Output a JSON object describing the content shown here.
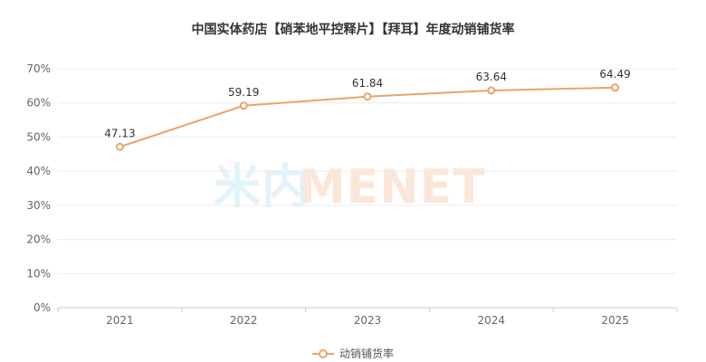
{
  "chart_data": {
    "type": "line",
    "title": "中国实体药店【硝苯地平控释片】【拜耳】年度动销铺货率",
    "categories": [
      "2021",
      "2022",
      "2023",
      "2024",
      "2025"
    ],
    "series": [
      {
        "name": "动销铺货率",
        "values": [
          47.13,
          59.19,
          61.84,
          63.64,
          64.49
        ],
        "color": "#e8a46a"
      }
    ],
    "y_ticks": [
      "0%",
      "10%",
      "20%",
      "30%",
      "40%",
      "50%",
      "60%",
      "70%"
    ],
    "ylim": [
      0,
      70
    ],
    "grid": true,
    "legend_position": "bottom-center",
    "data_labels": [
      "47.13",
      "59.19",
      "61.84",
      "63.64",
      "64.49"
    ]
  },
  "watermark": {
    "part1": "米内",
    "part2": "MENET"
  }
}
